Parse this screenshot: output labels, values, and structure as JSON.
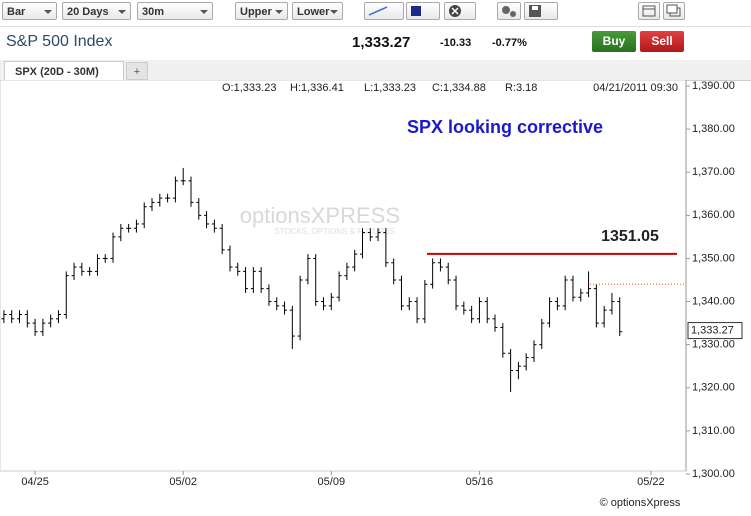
{
  "toolbar": {
    "dropdowns": [
      "Bar",
      "20 Days",
      "30m",
      "Upper",
      "Lower"
    ]
  },
  "quote": {
    "title": "S&P 500 Index",
    "last": "1,333.27",
    "change": "-10.33",
    "change_pct": "-0.77%",
    "buy": "Buy",
    "sell": "Sell"
  },
  "tabs": [
    "SPX (20D - 30M)",
    "+"
  ],
  "chart_data": {
    "type": "ohlc",
    "stats": [
      "O:1,333.23",
      "H:1,336.41",
      "L:1,333.23",
      "C:1,334.88",
      "R:3.18"
    ],
    "timestamp": "04/21/2011 09:30",
    "annotation": "SPX looking corrective",
    "watermark": "optionsXPRESS",
    "watermark_sub": "STOCKS, OPTIONS & FUTURES",
    "credit": "© optionsXpress",
    "color": "#000000",
    "categories": [
      null,
      null,
      null,
      null,
      "04/25",
      null,
      null,
      null,
      null,
      null,
      null,
      null,
      null,
      null,
      null,
      null,
      null,
      null,
      null,
      null,
      null,
      null,
      null,
      "05/02",
      null,
      null,
      null,
      null,
      null,
      null,
      null,
      null,
      null,
      null,
      null,
      null,
      null,
      null,
      null,
      null,
      null,
      null,
      "05/09",
      null,
      null,
      null,
      null,
      null,
      null,
      null,
      null,
      null,
      null,
      null,
      null,
      null,
      null,
      null,
      null,
      null,
      null,
      "05/16",
      null,
      null,
      null,
      null,
      null,
      null,
      null,
      null,
      null,
      null,
      null,
      null,
      null,
      null,
      null,
      null,
      null,
      null,
      null,
      null,
      null,
      "05/22",
      null,
      null,
      null,
      null
    ],
    "open": [
      1336,
      1337,
      1336,
      1337,
      1335,
      1333,
      1335,
      1336,
      1337,
      1346,
      1348,
      1347,
      1347,
      1350,
      1350,
      1355,
      1357,
      1357,
      1358,
      1362,
      1363,
      1364,
      1364,
      1368,
      1368,
      1363,
      1360,
      1358,
      1357,
      1352,
      1348,
      1347,
      1343,
      1347,
      1343,
      1340,
      1339,
      1338,
      1332,
      1345,
      1350,
      1340,
      1339,
      1341,
      1346,
      1348,
      1351,
      1356,
      1355,
      1356,
      1349,
      1345,
      1339,
      1340,
      1336,
      1344,
      1349,
      1348,
      1345,
      1339,
      1338,
      1336,
      1340,
      1336,
      1334,
      1328,
      1324,
      1325,
      1327,
      1330,
      1335,
      1340,
      1339,
      1345,
      1341,
      1342,
      1343,
      1335,
      1338,
      1340,
      null,
      null,
      null,
      null,
      null,
      null,
      null,
      null
    ],
    "high": [
      1338,
      1338,
      1338,
      1338,
      1336,
      1336,
      1337,
      1338,
      1347,
      1349,
      1349,
      1348,
      1351,
      1351,
      1356,
      1358,
      1358,
      1359,
      1363,
      1364,
      1365,
      1365,
      1369,
      1371,
      1369,
      1364,
      1361,
      1359,
      1358,
      1353,
      1349,
      1348,
      1348,
      1348,
      1344,
      1341,
      1340,
      1339,
      1346,
      1351,
      1351,
      1341,
      1342,
      1347,
      1349,
      1352,
      1357,
      1357,
      1357,
      1357,
      1350,
      1346,
      1341,
      1341,
      1345,
      1350,
      1350,
      1349,
      1346,
      1340,
      1339,
      1341,
      1341,
      1337,
      1335,
      1329,
      1326,
      1328,
      1331,
      1336,
      1341,
      1341,
      1346,
      1346,
      1343,
      1347,
      1344,
      1339,
      1342,
      1341,
      null,
      null,
      null,
      null,
      null,
      null,
      null,
      null
    ],
    "low": [
      1335,
      1335,
      1335,
      1334,
      1332,
      1332,
      1334,
      1335,
      1336,
      1345,
      1346,
      1346,
      1346,
      1349,
      1349,
      1354,
      1356,
      1356,
      1357,
      1361,
      1362,
      1363,
      1363,
      1367,
      1362,
      1359,
      1357,
      1356,
      1351,
      1347,
      1346,
      1342,
      1342,
      1342,
      1339,
      1338,
      1337,
      1329,
      1331,
      1344,
      1339,
      1338,
      1338,
      1340,
      1345,
      1347,
      1350,
      1354,
      1354,
      1348,
      1344,
      1338,
      1338,
      1335,
      1335,
      1343,
      1347,
      1344,
      1338,
      1337,
      1335,
      1335,
      1335,
      1333,
      1327,
      1319,
      1322,
      1324,
      1326,
      1329,
      1334,
      1338,
      1338,
      1340,
      1340,
      1341,
      1334,
      1334,
      1337,
      1332,
      null,
      null,
      null,
      null,
      null,
      null,
      null,
      null
    ],
    "close": [
      1337,
      1336,
      1337,
      1335,
      1333,
      1335,
      1336,
      1337,
      1346,
      1348,
      1347,
      1347,
      1350,
      1350,
      1355,
      1357,
      1357,
      1358,
      1362,
      1363,
      1364,
      1364,
      1368,
      1368,
      1363,
      1360,
      1358,
      1357,
      1352,
      1348,
      1347,
      1343,
      1347,
      1343,
      1340,
      1339,
      1338,
      1332,
      1345,
      1350,
      1340,
      1339,
      1341,
      1346,
      1348,
      1351,
      1356,
      1355,
      1356,
      1349,
      1345,
      1339,
      1340,
      1336,
      1344,
      1349,
      1348,
      1345,
      1339,
      1338,
      1336,
      1340,
      1336,
      1334,
      1328,
      1324,
      1325,
      1327,
      1330,
      1335,
      1340,
      1339,
      1345,
      1341,
      1342,
      1343,
      1335,
      1338,
      1340,
      1333,
      null,
      null,
      null,
      null,
      null,
      null,
      null,
      null
    ],
    "resistance": {
      "value": 1351.05,
      "color": "#cc0000"
    },
    "resistance_label": "1351.05",
    "prior_close": {
      "value": 1344,
      "color": "#e06020"
    },
    "last_price": {
      "value": 1333.27,
      "label": "1,333.27"
    },
    "ylim": [
      1300,
      1390
    ],
    "yticks": [
      {
        "value": 1300,
        "label": "1,300.00"
      },
      {
        "value": 1310,
        "label": "1,310.00"
      },
      {
        "value": 1320,
        "label": "1,320.00"
      },
      {
        "value": 1330,
        "label": "1,330.00"
      },
      {
        "value": 1340,
        "label": "1,340.00"
      },
      {
        "value": 1350,
        "label": "1,350.00"
      },
      {
        "value": 1360,
        "label": "1,360.00"
      },
      {
        "value": 1370,
        "label": "1,370.00"
      },
      {
        "value": 1380,
        "label": "1,380.00"
      },
      {
        "value": 1390,
        "label": "1,390.00"
      }
    ]
  }
}
